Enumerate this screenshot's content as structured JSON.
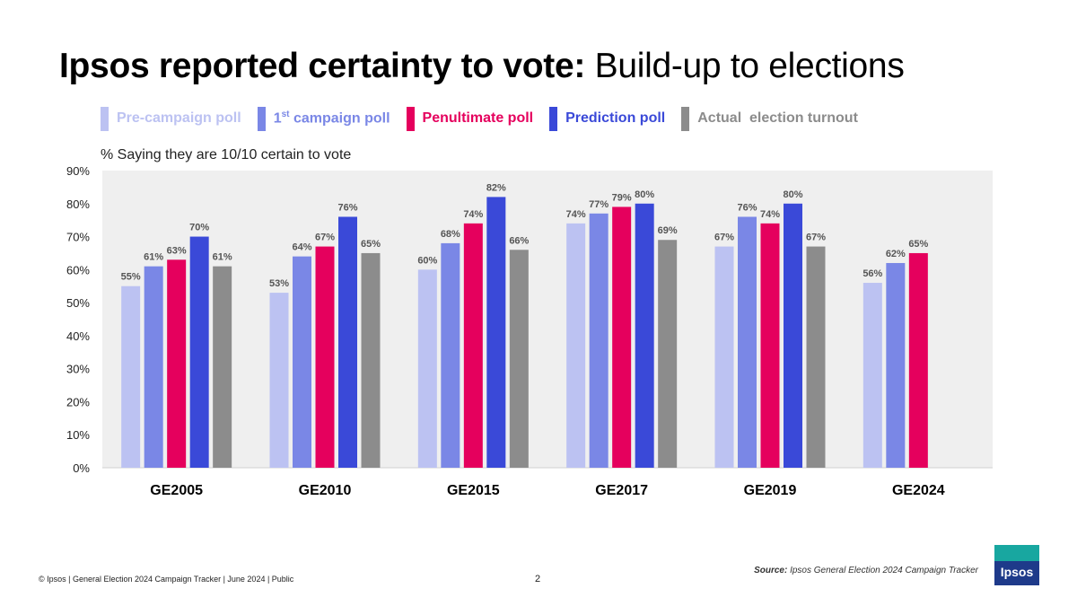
{
  "title": {
    "bold": "Ipsos reported certainty to vote:",
    "light": "Build-up to elections"
  },
  "legend": [
    {
      "label": "Pre-campaign poll",
      "color": "#bcc2f2"
    },
    {
      "label_main": "1",
      "label_sup": "st",
      "label_rest": " campaign poll",
      "color": "#7a87e6"
    },
    {
      "label": "Penultimate poll",
      "color": "#e5005d"
    },
    {
      "label": "Prediction poll",
      "color": "#3a49d8"
    },
    {
      "label": "Actual  election turnout",
      "color": "#8c8c8c"
    }
  ],
  "subtitle": "% Saying they are 10/10 certain to vote",
  "chart_data": {
    "type": "bar",
    "categories": [
      "GE2005",
      "GE2010",
      "GE2015",
      "GE2017",
      "GE2019",
      "GE2024"
    ],
    "series": [
      {
        "name": "Pre-campaign poll",
        "color": "#bcc2f2",
        "values": [
          55,
          53,
          60,
          74,
          67,
          56
        ],
        "labels": [
          "55%",
          "53%",
          "60%",
          "74%",
          "67%",
          "56%"
        ]
      },
      {
        "name": "1st campaign poll",
        "color": "#7a87e6",
        "values": [
          61,
          64,
          68,
          77,
          76,
          62
        ],
        "labels": [
          "61%",
          "64%",
          "68%",
          "77%",
          "76%",
          "62%"
        ]
      },
      {
        "name": "Penultimate poll",
        "color": "#e5005d",
        "values": [
          63,
          67,
          74,
          79,
          74,
          65
        ],
        "labels": [
          "63%",
          "67%",
          "74%",
          "79%",
          "74%",
          "65%"
        ]
      },
      {
        "name": "Prediction poll",
        "color": "#3a49d8",
        "values": [
          70,
          76,
          82,
          80,
          80,
          null
        ],
        "labels": [
          "70%",
          "76%",
          "82%",
          "80%",
          "80%",
          null
        ]
      },
      {
        "name": "Actual  election turnout",
        "color": "#8c8c8c",
        "values": [
          61,
          65,
          66,
          69,
          67,
          null
        ],
        "labels": [
          "61%",
          "65%",
          "66%",
          "69%",
          "67%",
          null
        ]
      }
    ],
    "ylim": [
      0,
      90
    ],
    "yticks": [
      "0%",
      "10%",
      "20%",
      "30%",
      "40%",
      "50%",
      "60%",
      "70%",
      "80%",
      "90%"
    ],
    "plot_background": "#efefef",
    "grid": false,
    "legend_position": "top"
  },
  "footer": {
    "left": "© Ipsos | General Election 2024 Campaign Tracker | June 2024 | Public",
    "page": "2",
    "source_label": "Source:",
    "source_text": "Ipsos General Election 2024 Campaign Tracker"
  },
  "logo": {
    "text": "Ipsos"
  }
}
